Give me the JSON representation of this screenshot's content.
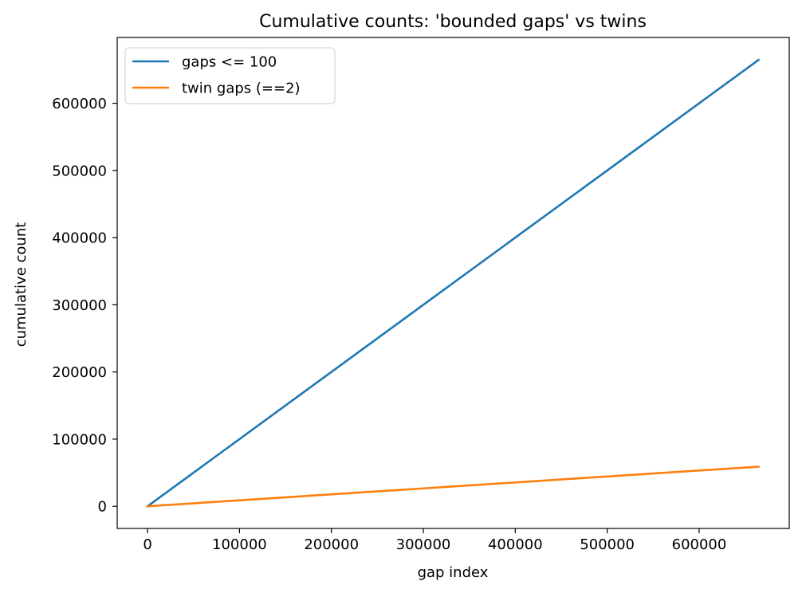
{
  "chart_data": {
    "type": "line",
    "title": "Cumulative counts: 'bounded gaps' vs twins",
    "xlabel": "gap index",
    "ylabel": "cumulative count",
    "xlim": [
      -33000,
      698000
    ],
    "ylim": [
      -33000,
      698000
    ],
    "xticks": [
      0,
      100000,
      200000,
      300000,
      400000,
      500000,
      600000
    ],
    "xtick_labels": [
      "0",
      "100000",
      "200000",
      "300000",
      "400000",
      "500000",
      "600000"
    ],
    "yticks": [
      0,
      100000,
      200000,
      300000,
      400000,
      500000,
      600000
    ],
    "ytick_labels": [
      "0",
      "100000",
      "200000",
      "300000",
      "400000",
      "500000",
      "600000"
    ],
    "grid": false,
    "legend_position": "top-left",
    "series": [
      {
        "name": "gaps <= 100",
        "color": "#1f77b4",
        "x": [
          0,
          664578
        ],
        "y": [
          0,
          664578
        ]
      },
      {
        "name": "twin gaps (==2)",
        "color": "#ff7f0e",
        "x": [
          0,
          664578
        ],
        "y": [
          0,
          58980
        ]
      }
    ]
  }
}
